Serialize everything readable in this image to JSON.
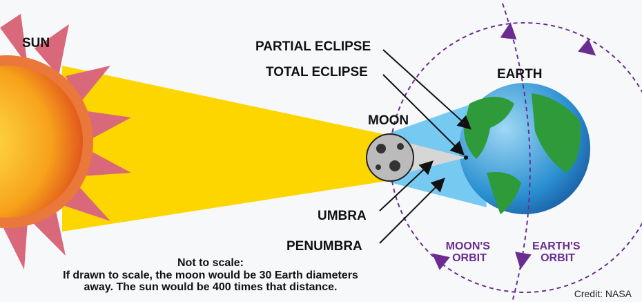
{
  "labels": {
    "sun": "SUN",
    "partial_eclipse": "PARTIAL ECLIPSE",
    "total_eclipse": "TOTAL ECLIPSE",
    "moon": "MOON",
    "earth": "EARTH",
    "umbra": "UMBRA",
    "penumbra": "PENUMBRA",
    "moons_orbit": [
      "MOON'S",
      "ORBIT"
    ],
    "earths_orbit": [
      "EARTH'S",
      "ORBIT"
    ]
  },
  "note": {
    "title": "Not to scale:",
    "lines": [
      "If drawn to scale, the moon would be 30 Earth diameters",
      "away. The sun would be 400 times that distance."
    ]
  },
  "credit": "Credit: NASA"
}
